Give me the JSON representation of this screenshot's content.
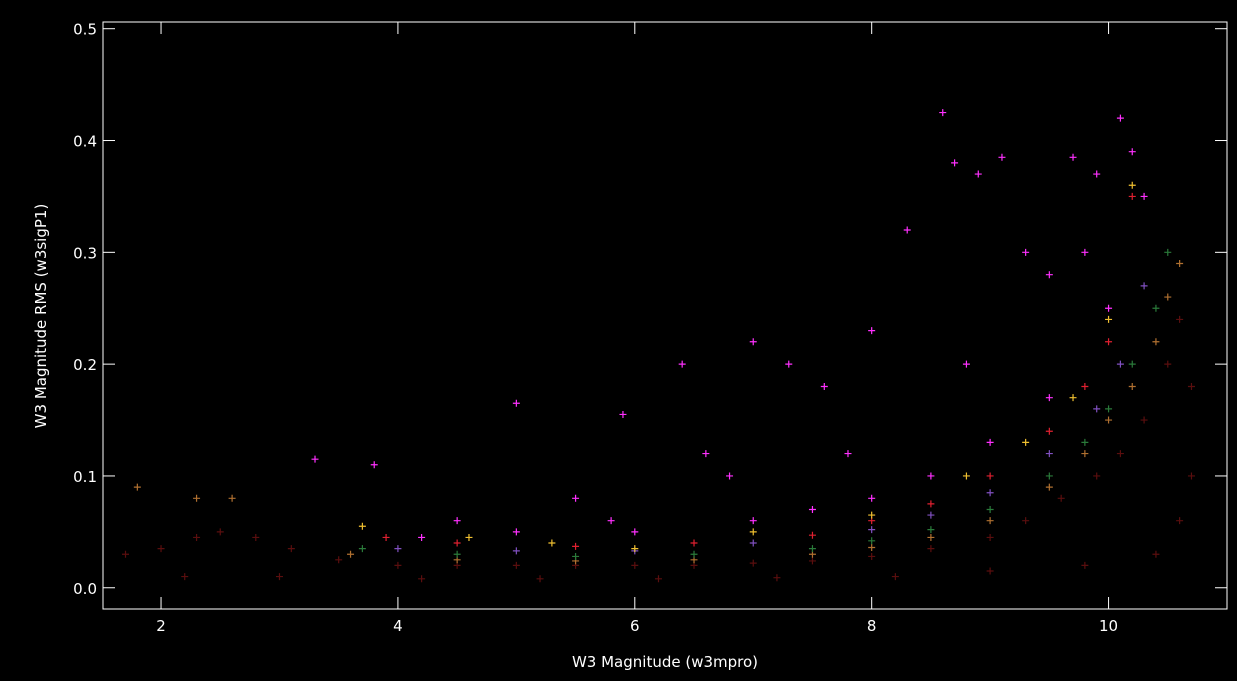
{
  "chart_data": {
    "type": "scatter",
    "x_label": "W3 Magnitude (w3mpro)",
    "y_label": "W3 Magnitude RMS (w3sigP1)",
    "xlim": [
      1.51,
      11.0
    ],
    "ylim": [
      -0.019,
      0.506
    ],
    "xticks": [
      2,
      4,
      6,
      8,
      10
    ],
    "yticks": [
      {
        "value": 0,
        "label": "0.0"
      },
      {
        "value": 0.1,
        "label": "0.1"
      },
      {
        "value": 0.2,
        "label": "0.2"
      },
      {
        "value": 0.3,
        "label": "0.3"
      },
      {
        "value": 0.4,
        "label": "0.4"
      },
      {
        "value": 0.5,
        "label": "0.5"
      }
    ],
    "marker": "+",
    "series": [
      {
        "color": "#5a0e0e",
        "x": [
          1.7,
          2.0,
          2.3,
          2.5,
          2.8,
          3.1,
          3.5,
          4,
          4.5,
          5,
          5.5,
          6,
          6.5,
          7,
          7.5,
          8,
          8.5,
          9,
          9.3,
          9.6,
          9.9,
          10.1,
          10.3,
          10.5,
          10.6,
          10.7,
          2.2,
          3.0,
          4.2,
          5.2,
          6.2,
          7.2,
          8.2,
          9.0,
          9.8,
          10.4,
          10.6,
          10.7
        ],
        "y": [
          0.03,
          0.035,
          0.045,
          0.05,
          0.045,
          0.035,
          0.025,
          0.02,
          0.02,
          0.02,
          0.02,
          0.02,
          0.02,
          0.022,
          0.024,
          0.028,
          0.035,
          0.045,
          0.06,
          0.08,
          0.1,
          0.12,
          0.15,
          0.2,
          0.24,
          0.18,
          0.01,
          0.01,
          0.008,
          0.008,
          0.008,
          0.009,
          0.01,
          0.015,
          0.02,
          0.03,
          0.06,
          0.1
        ]
      },
      {
        "color": "#b07030",
        "x": [
          1.8,
          2.3,
          2.6,
          3.6,
          4.5,
          5.5,
          6.5,
          7.5,
          8.0,
          8.5,
          9.0,
          9.5,
          9.8,
          10.0,
          10.2,
          10.4,
          10.5,
          10.6
        ],
        "y": [
          0.09,
          0.08,
          0.08,
          0.03,
          0.025,
          0.024,
          0.025,
          0.03,
          0.036,
          0.045,
          0.06,
          0.09,
          0.12,
          0.15,
          0.18,
          0.22,
          0.26,
          0.29
        ]
      },
      {
        "color": "#2a7a3a",
        "x": [
          3.7,
          4.5,
          5.5,
          6.5,
          7.5,
          8.0,
          8.5,
          9.0,
          9.5,
          9.8,
          10.0,
          10.2,
          10.4,
          10.5
        ],
        "y": [
          0.035,
          0.03,
          0.028,
          0.03,
          0.035,
          0.042,
          0.052,
          0.07,
          0.1,
          0.13,
          0.16,
          0.2,
          0.25,
          0.3
        ]
      },
      {
        "color": "#8050c0",
        "x": [
          4,
          5,
          6,
          7,
          8,
          8.5,
          9,
          9.5,
          9.9,
          10.1,
          10.3
        ],
        "y": [
          0.035,
          0.033,
          0.033,
          0.04,
          0.052,
          0.065,
          0.085,
          0.12,
          0.16,
          0.2,
          0.27
        ]
      },
      {
        "color": "#e02030",
        "x": [
          3.9,
          4.5,
          5.5,
          6.5,
          7.5,
          8,
          8.5,
          9,
          9.5,
          9.8,
          10,
          10.2
        ],
        "y": [
          0.045,
          0.04,
          0.037,
          0.04,
          0.047,
          0.06,
          0.075,
          0.1,
          0.14,
          0.18,
          0.22,
          0.35
        ]
      },
      {
        "color": "#f0c030",
        "x": [
          3.7,
          4.6,
          5.3,
          6,
          7,
          8,
          8.8,
          9.3,
          9.7,
          10.0,
          10.2
        ],
        "y": [
          0.055,
          0.045,
          0.04,
          0.035,
          0.05,
          0.065,
          0.1,
          0.13,
          0.17,
          0.24,
          0.36
        ]
      },
      {
        "color": "#ff30ff",
        "x": [
          3.3,
          3.8,
          4.5,
          5.0,
          5.5,
          5.9,
          6.4,
          6.6,
          7.0,
          7.3,
          7.6,
          8.0,
          8.3,
          8.6,
          8.7,
          8.9,
          9.1,
          9.3,
          9.5,
          9.7,
          9.9,
          10.1,
          10.2,
          10.3,
          5,
          6,
          7,
          7.5,
          8,
          8.5,
          9,
          9.5,
          10,
          4.2,
          5.8,
          6.8,
          7.8,
          8.8,
          9.8
        ],
        "y": [
          0.115,
          0.11,
          0.06,
          0.165,
          0.08,
          0.155,
          0.2,
          0.12,
          0.22,
          0.2,
          0.18,
          0.23,
          0.32,
          0.425,
          0.38,
          0.37,
          0.385,
          0.3,
          0.28,
          0.385,
          0.37,
          0.42,
          0.39,
          0.35,
          0.05,
          0.05,
          0.06,
          0.07,
          0.08,
          0.1,
          0.13,
          0.17,
          0.25,
          0.045,
          0.06,
          0.1,
          0.12,
          0.2,
          0.3
        ]
      }
    ]
  }
}
